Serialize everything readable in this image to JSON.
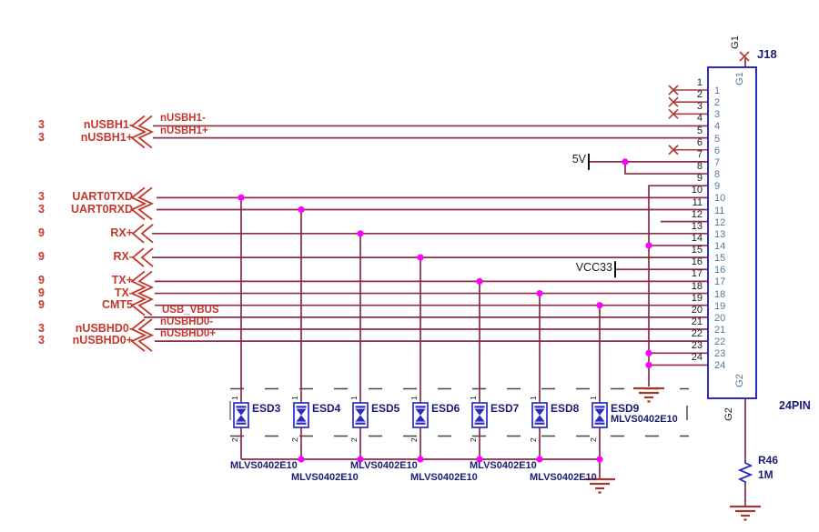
{
  "schematic": {
    "connector": {
      "designator": "J18",
      "type_label": "24PIN",
      "top_pin_name": "G1",
      "top_pin_name_inside": "G1",
      "bottom_pin_name": "G2",
      "bottom_pin_name_inside": "G2",
      "pin_numbers": [
        "1",
        "2",
        "3",
        "4",
        "5",
        "6",
        "7",
        "8",
        "9",
        "10",
        "11",
        "12",
        "13",
        "14",
        "15",
        "16",
        "17",
        "18",
        "19",
        "20",
        "21",
        "22",
        "23",
        "24"
      ]
    },
    "left_ports": [
      {
        "sheet_ref": "3",
        "name": "nUSBH1-"
      },
      {
        "sheet_ref": "3",
        "name": "nUSBH1+"
      },
      {
        "sheet_ref": "3",
        "name": "UART0TXD"
      },
      {
        "sheet_ref": "3",
        "name": "UART0RXD"
      },
      {
        "sheet_ref": "9",
        "name": "RX+"
      },
      {
        "sheet_ref": "9",
        "name": "RX-"
      },
      {
        "sheet_ref": "9",
        "name": "TX+"
      },
      {
        "sheet_ref": "9",
        "name": "TX-"
      },
      {
        "sheet_ref": "9",
        "name": "CMT5"
      },
      {
        "sheet_ref": "3",
        "name": "nUSBHD0-"
      },
      {
        "sheet_ref": "3",
        "name": "nUSBHD0+"
      }
    ],
    "net_labels": [
      "nUSBH1-",
      "nUSBH1+",
      "USB_VBUS",
      "nUSBHD0-",
      "nUSBHD0+"
    ],
    "power_labels": {
      "p5v": "5V",
      "vcc33": "VCC33"
    },
    "esd": {
      "part_number": "MLVS0402E10",
      "pin_top": "1",
      "pin_bottom": "2",
      "devices": [
        "ESD3",
        "ESD4",
        "ESD5",
        "ESD6",
        "ESD7",
        "ESD8",
        "ESD9"
      ]
    },
    "resistor": {
      "designator": "R46",
      "value": "1M"
    },
    "colors": {
      "wire": "#8b2d44",
      "stub": "#b03a35",
      "symbol_blue": "#2b2bc4",
      "junction": "#ff00ff",
      "ground": "#a03a30",
      "port_red": "#c4372c",
      "navy_text": "#1b1b75",
      "inside_pin_text": "#587797"
    }
  }
}
